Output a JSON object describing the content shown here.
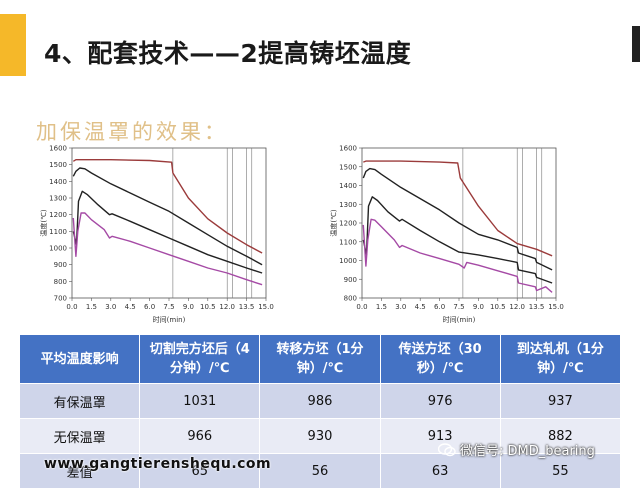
{
  "slide": {
    "title": "4、配套技术——2提高铸坯温度",
    "subtitle": "加保温罩的效果："
  },
  "colors": {
    "accent": "#f5b829",
    "table_header": "#4472c4",
    "row_dark": "#cfd5ea",
    "row_light": "#e9ebf5"
  },
  "chart_data": [
    {
      "type": "line",
      "xlabel": "时间(min)",
      "ylabel": "温度(℃)",
      "xlim": [
        0,
        15
      ],
      "ylim": [
        700,
        1600
      ],
      "xticks": [
        "0.0",
        "1.5",
        "3.0",
        "4.5",
        "6.0",
        "7.5",
        "9.0",
        "10.5",
        "12.0",
        "13.5",
        "15.0"
      ],
      "yticks": [
        "700",
        "800",
        "900",
        "1000",
        "1100",
        "1200",
        "1300",
        "1400",
        "1500",
        "1600"
      ],
      "vlines": [
        7.8,
        12.0,
        12.4,
        13.5,
        13.9
      ],
      "series": [
        {
          "color": "#9b3b3b",
          "x": [
            0.1,
            0.3,
            3,
            6,
            7.7,
            7.8,
            9,
            10.5,
            12,
            13.5,
            14.7
          ],
          "y": [
            1520,
            1530,
            1530,
            1525,
            1515,
            1450,
            1300,
            1175,
            1090,
            1020,
            970
          ]
        },
        {
          "color": "#222222",
          "x": [
            0.1,
            0.3,
            0.6,
            1,
            1.5,
            3,
            4.5,
            6,
            7.5,
            9,
            10.5,
            12,
            13.5,
            14.7
          ],
          "y": [
            1430,
            1460,
            1480,
            1475,
            1450,
            1385,
            1330,
            1275,
            1220,
            1150,
            1080,
            1010,
            950,
            900
          ]
        },
        {
          "color": "#222222",
          "x": [
            0.1,
            0.35,
            0.5,
            0.8,
            1.2,
            2,
            2.9,
            3.1,
            4.5,
            6,
            7.5,
            9,
            10.5,
            12,
            13.5,
            14.7
          ],
          "y": [
            1100,
            1020,
            1280,
            1340,
            1320,
            1260,
            1200,
            1205,
            1160,
            1110,
            1060,
            1010,
            960,
            920,
            880,
            850
          ]
        },
        {
          "color": "#a54aa5",
          "x": [
            0.1,
            0.3,
            0.45,
            0.7,
            1,
            1.5,
            2.5,
            2.9,
            3.1,
            4.5,
            6,
            7.5,
            9,
            10.5,
            12,
            13.5,
            14.7
          ],
          "y": [
            1180,
            950,
            1100,
            1210,
            1210,
            1170,
            1110,
            1060,
            1070,
            1040,
            1000,
            960,
            920,
            880,
            850,
            810,
            780
          ]
        }
      ]
    },
    {
      "type": "line",
      "xlabel": "时间(min)",
      "ylabel": "温度(℃)",
      "xlim": [
        0,
        15
      ],
      "ylim": [
        800,
        1600
      ],
      "xticks": [
        "0.0",
        "1.5",
        "3.0",
        "4.5",
        "6.0",
        "7.5",
        "9.0",
        "10.5",
        "12.0",
        "13.5",
        "15.0"
      ],
      "yticks": [
        "800",
        "900",
        "1000",
        "1100",
        "1200",
        "1300",
        "1400",
        "1500",
        "1600"
      ],
      "vlines": [
        7.8,
        12.0,
        12.4,
        13.5,
        13.9
      ],
      "series": [
        {
          "color": "#9b3b3b",
          "x": [
            0.1,
            0.3,
            3,
            6,
            7.4,
            7.6,
            9,
            10.5,
            12,
            13.5,
            14.7
          ],
          "y": [
            1525,
            1530,
            1530,
            1525,
            1520,
            1440,
            1290,
            1160,
            1090,
            1060,
            1025
          ]
        },
        {
          "color": "#222222",
          "x": [
            0.1,
            0.3,
            0.6,
            1,
            1.5,
            3,
            4.5,
            6,
            7.5,
            9,
            10.5,
            12,
            12.1,
            13.4,
            13.5,
            14.7
          ],
          "y": [
            1440,
            1475,
            1490,
            1485,
            1460,
            1390,
            1330,
            1270,
            1200,
            1140,
            1110,
            1070,
            1040,
            1010,
            990,
            950
          ]
        },
        {
          "color": "#222222",
          "x": [
            0.1,
            0.35,
            0.5,
            0.8,
            1.2,
            2,
            2.9,
            3.1,
            4.5,
            6,
            7.5,
            9,
            10.5,
            12,
            12.1,
            13.4,
            13.5,
            14.7
          ],
          "y": [
            1110,
            1030,
            1290,
            1340,
            1320,
            1260,
            1210,
            1220,
            1160,
            1100,
            1045,
            1030,
            1010,
            990,
            950,
            930,
            910,
            880
          ]
        },
        {
          "color": "#a54aa5",
          "x": [
            0.1,
            0.3,
            0.45,
            0.7,
            1,
            1.5,
            2.5,
            2.9,
            3.1,
            4.5,
            6,
            7.5,
            7.9,
            8.1,
            9,
            10.5,
            12,
            12.1,
            13.4,
            13.5,
            14.2,
            14.7
          ],
          "y": [
            1190,
            970,
            1110,
            1220,
            1215,
            1180,
            1110,
            1070,
            1080,
            1040,
            1010,
            980,
            960,
            990,
            975,
            945,
            915,
            880,
            860,
            840,
            860,
            830
          ]
        }
      ]
    }
  ],
  "table": {
    "headers": [
      "平均温度影响",
      "切割完方坯后（4分钟）/℃",
      "转移方坯（1分钟）/℃",
      "传送方坯（30秒）/℃",
      "到达轧机（1分钟）/℃"
    ],
    "rows": [
      [
        "有保温罩",
        "1031",
        "986",
        "976",
        "937"
      ],
      [
        "无保温罩",
        "966",
        "930",
        "913",
        "882"
      ],
      [
        "差值",
        "65",
        "56",
        "63",
        "55"
      ]
    ]
  },
  "watermarks": {
    "url": "www.gangtierenshequ.com",
    "wechat": "微信号: DMD_bearing"
  }
}
